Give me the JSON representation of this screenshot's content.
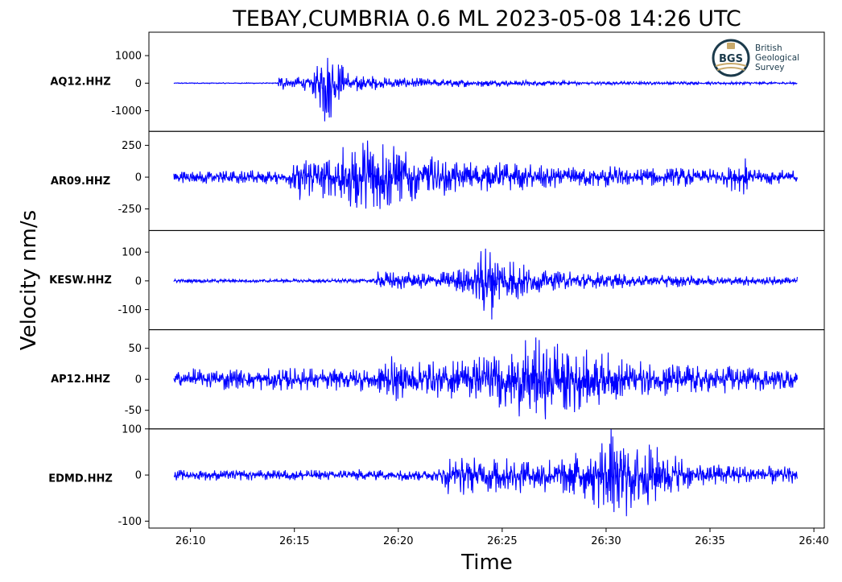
{
  "chart_data": {
    "type": "line",
    "title": "TEBAY,CUMBRIA 0.6 ML   2023-05-08 14:26 UTC",
    "xlabel": "Time",
    "ylabel": "Velocity nm/s",
    "x_ticks": [
      "26:10",
      "26:15",
      "26:20",
      "26:25",
      "26:30",
      "26:35",
      "26:40"
    ],
    "x_range_seconds": [
      {
        "start": "26:08",
        "end": "26:40.5"
      }
    ],
    "trace_span": {
      "start": "26:09.2",
      "end": "26:39.2"
    },
    "line_color": "#0000ff",
    "grid": false,
    "panels": [
      {
        "channel": "AQ12.HHZ",
        "ylim": [
          -1750,
          1850
        ],
        "yticks": [
          1000,
          0,
          -1000
        ],
        "ytick_labels": [
          "1000",
          "0",
          "-1000"
        ],
        "envelope": [
          {
            "t": 0,
            "amp": 20
          },
          {
            "t": 5.0,
            "amp": 20
          },
          {
            "t": 5.05,
            "amp": 400
          },
          {
            "t": 5.5,
            "amp": 200
          },
          {
            "t": 6.5,
            "amp": 300
          },
          {
            "t": 7.0,
            "amp": 800
          },
          {
            "t": 7.3,
            "amp": 1800
          },
          {
            "t": 7.6,
            "amp": 1200
          },
          {
            "t": 8.5,
            "amp": 450
          },
          {
            "t": 10.0,
            "amp": 230
          },
          {
            "t": 14.0,
            "amp": 150
          },
          {
            "t": 20.0,
            "amp": 80
          },
          {
            "t": 30.0,
            "amp": 50
          }
        ]
      },
      {
        "channel": "AR09.HHZ",
        "ylim": [
          -420,
          360
        ],
        "yticks": [
          250,
          0,
          -250
        ],
        "ytick_labels": [
          "250",
          "0",
          "-250"
        ],
        "envelope": [
          {
            "t": 0,
            "amp": 55
          },
          {
            "t": 5.5,
            "amp": 60
          },
          {
            "t": 6.0,
            "amp": 210
          },
          {
            "t": 7.0,
            "amp": 160
          },
          {
            "t": 8.8,
            "amp": 300
          },
          {
            "t": 9.5,
            "amp": 400
          },
          {
            "t": 10.5,
            "amp": 260
          },
          {
            "t": 13.0,
            "amp": 150
          },
          {
            "t": 18.0,
            "amp": 100
          },
          {
            "t": 26.5,
            "amp": 70
          },
          {
            "t": 27.4,
            "amp": 180
          },
          {
            "t": 28.0,
            "amp": 70
          },
          {
            "t": 30.0,
            "amp": 60
          }
        ]
      },
      {
        "channel": "KESW.HHZ",
        "ylim": [
          -170,
          175
        ],
        "yticks": [
          100,
          0,
          -100
        ],
        "ytick_labels": [
          "100",
          "0",
          "-100"
        ],
        "envelope": [
          {
            "t": 0,
            "amp": 7
          },
          {
            "t": 9.6,
            "amp": 8
          },
          {
            "t": 9.8,
            "amp": 35
          },
          {
            "t": 12.5,
            "amp": 30
          },
          {
            "t": 14.5,
            "amp": 60
          },
          {
            "t": 15.0,
            "amp": 165
          },
          {
            "t": 15.6,
            "amp": 110
          },
          {
            "t": 17.5,
            "amp": 45
          },
          {
            "t": 22.0,
            "amp": 25
          },
          {
            "t": 30.0,
            "amp": 15
          }
        ]
      },
      {
        "channel": "AP12.HHZ",
        "ylim": [
          -80,
          80
        ],
        "yticks": [
          50,
          0,
          -50
        ],
        "ytick_labels": [
          "50",
          "0",
          "-50"
        ],
        "envelope": [
          {
            "t": 0,
            "amp": 18
          },
          {
            "t": 9.5,
            "amp": 20
          },
          {
            "t": 10.3,
            "amp": 38
          },
          {
            "t": 13.0,
            "amp": 30
          },
          {
            "t": 16.0,
            "amp": 55
          },
          {
            "t": 17.2,
            "amp": 78
          },
          {
            "t": 19.3,
            "amp": 60
          },
          {
            "t": 22.0,
            "amp": 35
          },
          {
            "t": 30.0,
            "amp": 15
          }
        ]
      },
      {
        "channel": "EDMD.HHZ",
        "ylim": [
          -115,
          100
        ],
        "yticks": [
          100,
          0,
          -100
        ],
        "ytick_labels": [
          "100",
          "0",
          "-100"
        ],
        "envelope": [
          {
            "t": 0,
            "amp": 12
          },
          {
            "t": 12.8,
            "amp": 14
          },
          {
            "t": 13.1,
            "amp": 45
          },
          {
            "t": 18.0,
            "amp": 40
          },
          {
            "t": 20.0,
            "amp": 60
          },
          {
            "t": 21.0,
            "amp": 110
          },
          {
            "t": 23.0,
            "amp": 70
          },
          {
            "t": 25.0,
            "amp": 30
          },
          {
            "t": 30.0,
            "amp": 20
          }
        ]
      }
    ]
  },
  "logo": {
    "abbr": "BGS",
    "line1": "British",
    "line2": "Geological",
    "line3": "Survey",
    "ring_color": "#1b3a4b",
    "accent_color": "#c8a96a"
  }
}
